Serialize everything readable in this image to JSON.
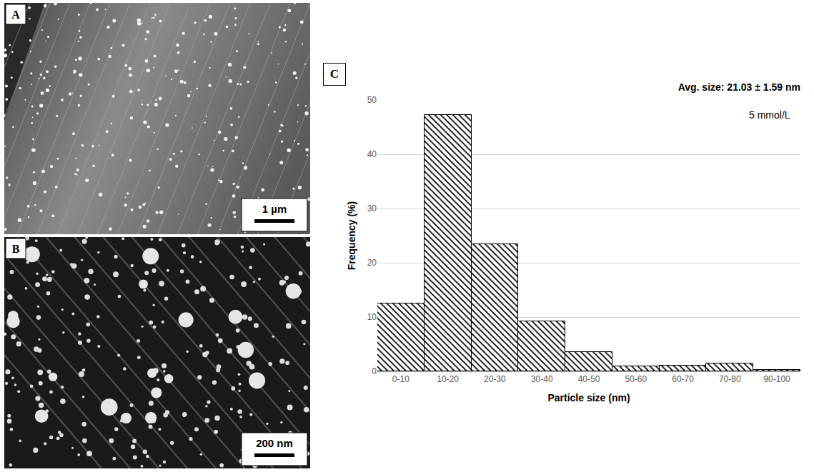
{
  "panels": [
    {
      "label": "A",
      "scale_bar": "1 µm"
    },
    {
      "label": "B",
      "scale_bar": "200 nm"
    }
  ],
  "chart_label": "C",
  "chart_data": {
    "type": "bar",
    "title": "Avg. size: 21.03 ± 1.59 nm",
    "x_label": "Particle size (nm)",
    "y_label": "Frequency (%)",
    "annotations": [
      "5 mmol/L"
    ],
    "categories": [
      "0-10",
      "10-20",
      "20-30",
      "30-40",
      "40-50",
      "50-60",
      "60-70",
      "70-80",
      "90-100"
    ],
    "values": [
      12.5,
      47.3,
      23.4,
      9.2,
      3.6,
      0.9,
      1.1,
      1.4,
      0.2
    ],
    "color": "#000000",
    "ylim": [
      0,
      50
    ],
    "yticks": [
      0,
      10,
      20,
      30,
      40,
      50
    ],
    "grid": true
  }
}
